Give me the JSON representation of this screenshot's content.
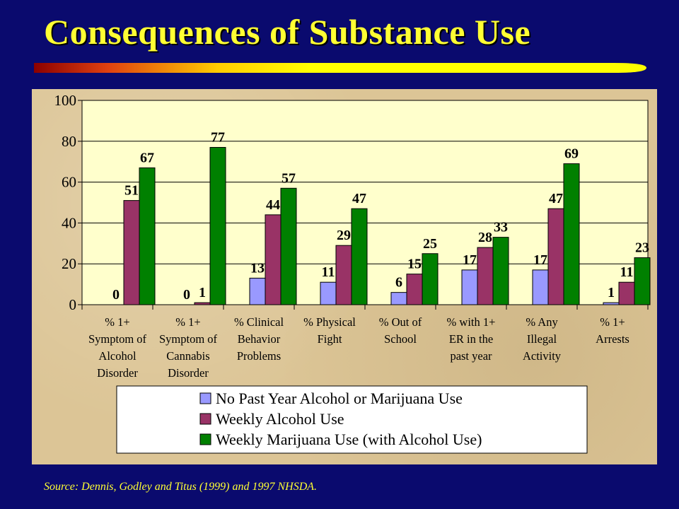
{
  "slide": {
    "title": "Consequences of Substance Use",
    "source": "Source: Dennis, Godley and Titus (1999) and 1997 NHSDA."
  },
  "colors": {
    "background": "#0a0a6e",
    "title": "#ffff33",
    "panel": "#dcc596",
    "plot_area": "#ffffcc"
  },
  "chart_data": {
    "type": "bar",
    "title": "",
    "xlabel": "",
    "ylabel": "",
    "ylim": [
      0,
      100
    ],
    "yticks": [
      0,
      20,
      40,
      60,
      80,
      100
    ],
    "grid": true,
    "legend_position": "bottom",
    "categories": [
      [
        "% 1+",
        "Symptom of",
        "Alcohol",
        "Disorder"
      ],
      [
        "% 1+",
        "Symptom of",
        "Cannabis",
        "Disorder"
      ],
      [
        "% Clinical",
        "Behavior",
        "Problems"
      ],
      [
        "% Physical",
        "Fight"
      ],
      [
        "% Out of",
        "School"
      ],
      [
        "% with 1+",
        "ER in the",
        "past year"
      ],
      [
        "% Any",
        "Illegal",
        "Activity"
      ],
      [
        "% 1+",
        "Arrests"
      ]
    ],
    "series": [
      {
        "name": "No Past Year Alcohol or Marijuana Use",
        "color": "#9999ff",
        "values": [
          0,
          0,
          13,
          11,
          6,
          17,
          17,
          1
        ]
      },
      {
        "name": "Weekly Alcohol Use",
        "color": "#993366",
        "values": [
          51,
          1,
          44,
          29,
          15,
          28,
          47,
          11
        ]
      },
      {
        "name": "Weekly Marijuana Use (with Alcohol Use)",
        "color": "#008000",
        "values": [
          67,
          77,
          57,
          47,
          25,
          33,
          69,
          23
        ]
      }
    ]
  }
}
